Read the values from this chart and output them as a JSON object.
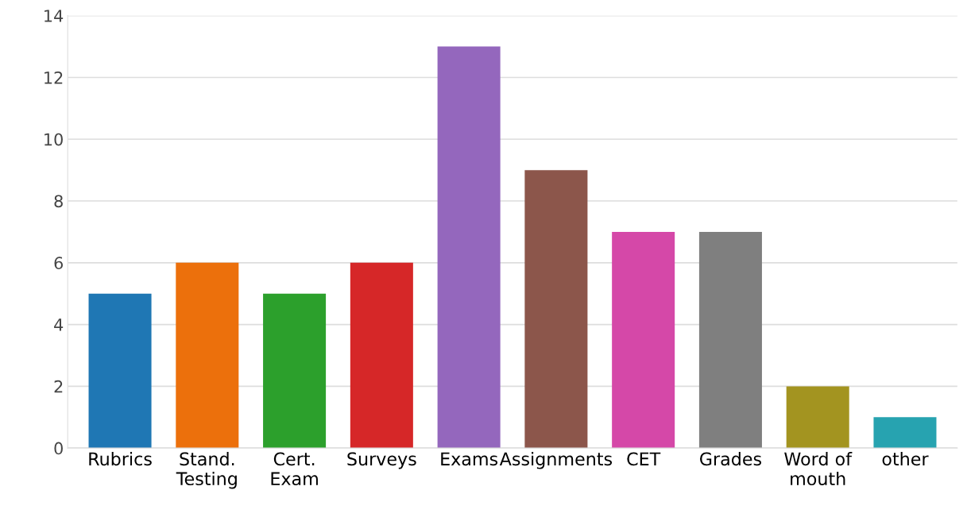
{
  "chart_data": {
    "type": "bar",
    "categories": [
      "Rubrics",
      "Stand.\nTesting",
      "Cert.\nExam",
      "Surveys",
      "Exams",
      "Assignments",
      "CET",
      "Grades",
      "Word of\nmouth",
      "other"
    ],
    "values": [
      5,
      6,
      5,
      6,
      13,
      9,
      7,
      7,
      2,
      1
    ],
    "colors": [
      "#1f77b4",
      "#ec700c",
      "#2ca02c",
      "#d62728",
      "#9467bd",
      "#8c564b",
      "#d548a8",
      "#7f7f7f",
      "#a39420",
      "#27a3b0"
    ],
    "ylim": [
      0,
      14
    ],
    "yticks": [
      0,
      2,
      4,
      6,
      8,
      10,
      12,
      14
    ],
    "grid": "y"
  }
}
